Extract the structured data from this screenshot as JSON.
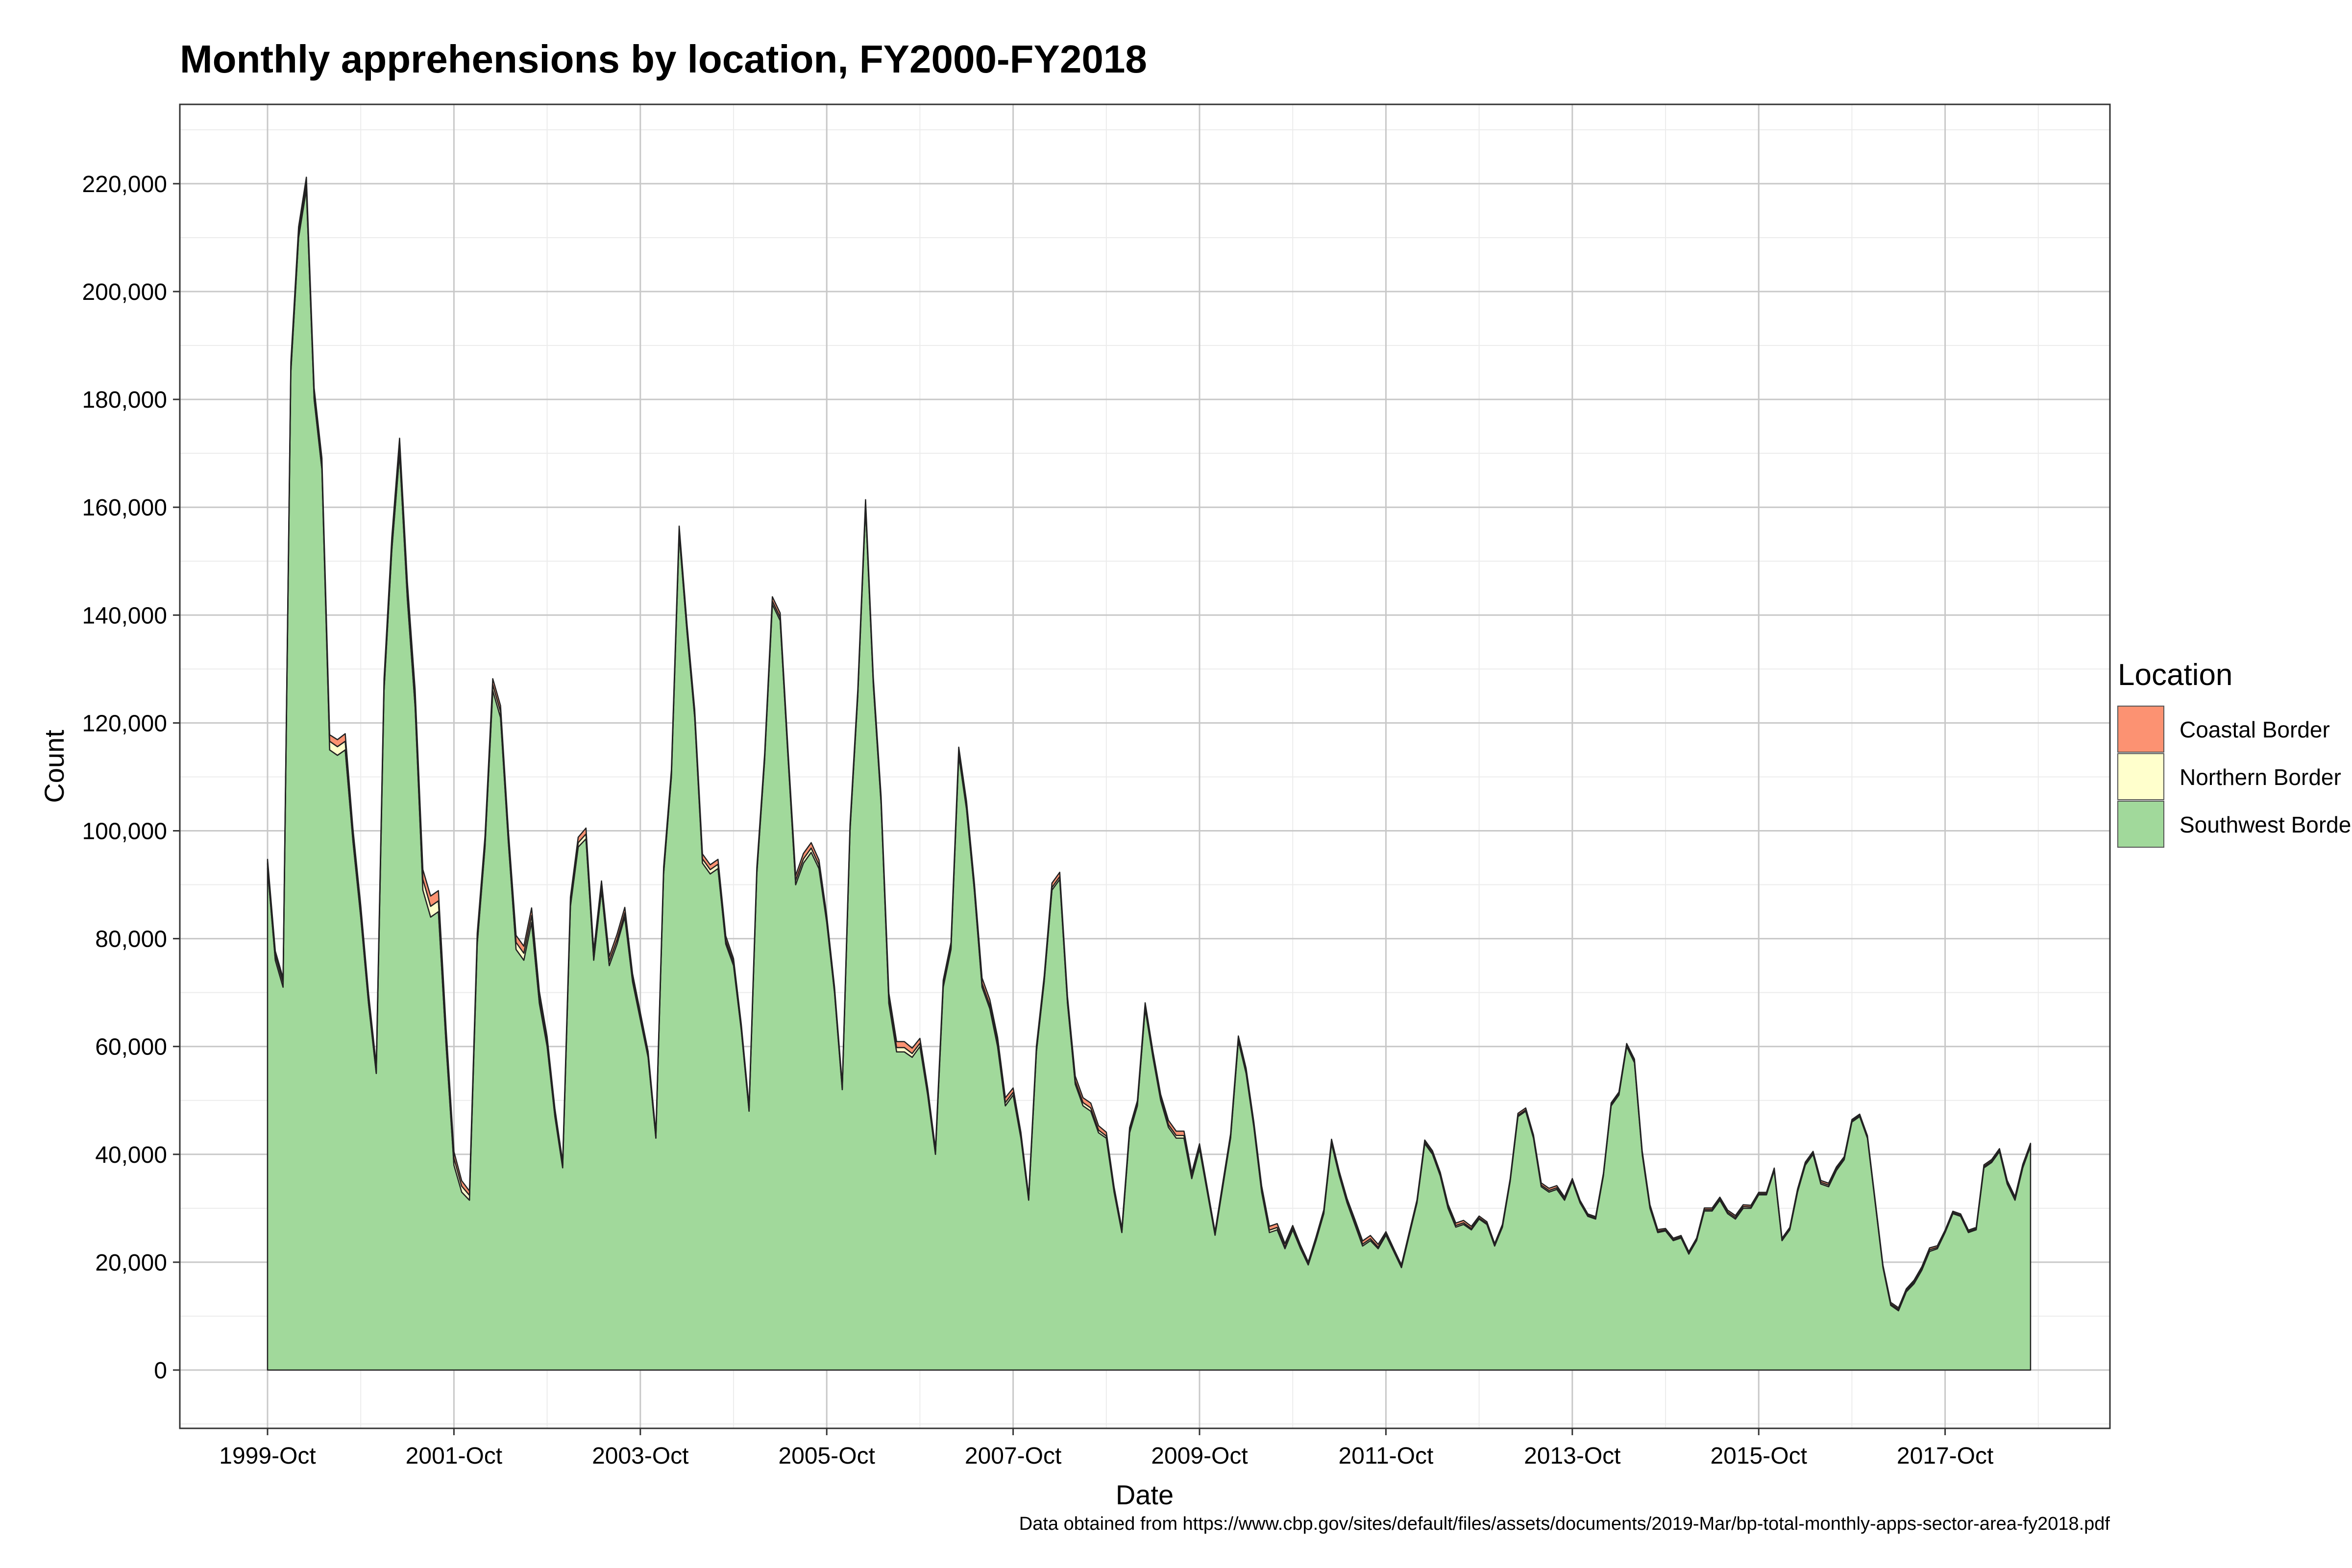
{
  "chart_data": {
    "type": "area",
    "stacked": true,
    "title": "Monthly apprehensions by location, FY2000-FY2018",
    "xlabel": "Date",
    "ylabel": "Count",
    "caption": "Data obtained from https://www.cbp.gov/sites/default/files/assets/documents/2019-Mar/bp-total-monthly-apps-sector-area-fy2018.pdf",
    "legend_title": "Location",
    "legend_position": "right",
    "grid": true,
    "x_start": "1999-Oct",
    "x_tick_labels": [
      "1999-Oct",
      "2001-Oct",
      "2003-Oct",
      "2005-Oct",
      "2007-Oct",
      "2009-Oct",
      "2011-Oct",
      "2013-Oct",
      "2015-Oct",
      "2017-Oct"
    ],
    "y_tick_labels": [
      "0",
      "20,000",
      "40,000",
      "60,000",
      "80,000",
      "100,000",
      "120,000",
      "140,000",
      "160,000",
      "180,000",
      "200,000",
      "220,000"
    ],
    "ylim": [
      -10000,
      235000
    ],
    "colors": {
      "Coastal Border": "#fc9272",
      "Northern Border": "#ffffcc",
      "Southwest Border": "#a1d99b"
    },
    "series": [
      {
        "name": "Southwest Border",
        "values": [
          93000,
          76000,
          71000,
          185000,
          210000,
          219000,
          180000,
          167000,
          115000,
          114000,
          115000,
          98000,
          84000,
          68000,
          55000,
          126000,
          152000,
          170000,
          143000,
          123000,
          89000,
          84000,
          85000,
          60000,
          38000,
          33000,
          31500,
          79000,
          97000,
          126000,
          121000,
          98000,
          78000,
          76000,
          83000,
          68000,
          60000,
          47000,
          37500,
          86000,
          97000,
          98500,
          76000,
          89000,
          75000,
          79000,
          84000,
          72000,
          65000,
          58000,
          43000,
          92000,
          110000,
          155000,
          137000,
          121000,
          94000,
          92000,
          93000,
          79000,
          75000,
          63000,
          48000,
          92000,
          113000,
          142000,
          139000,
          114000,
          90000,
          94000,
          96000,
          93000,
          83000,
          70000,
          52000,
          100000,
          125000,
          160000,
          127000,
          105000,
          68000,
          59000,
          59000,
          58000,
          60000,
          51000,
          40000,
          71000,
          78000,
          114000,
          104000,
          89000,
          71000,
          67000,
          60000,
          49000,
          51000,
          43000,
          31500,
          59000,
          72000,
          89000,
          91000,
          68000,
          53000,
          49000,
          48000,
          44000,
          43000,
          33000,
          25500,
          44000,
          49000,
          67000,
          58000,
          50000,
          45000,
          43000,
          43000,
          35500,
          41000,
          33000,
          25000,
          34000,
          43000,
          61000,
          55000,
          45000,
          33000,
          25500,
          26000,
          22500,
          26000,
          22500,
          19500,
          24000,
          29000,
          42000,
          36000,
          31000,
          27000,
          23000,
          24000,
          22500,
          25000,
          22000,
          19000,
          25000,
          31000,
          42000,
          40000,
          36000,
          30000,
          26500,
          27000,
          26000,
          28000,
          27000,
          23000,
          26500,
          35000,
          47000,
          48000,
          43000,
          34000,
          33000,
          33500,
          31500,
          35000,
          31000,
          28500,
          28000,
          36000,
          49000,
          51000,
          60000,
          57000,
          40000,
          30000,
          25500,
          25800,
          24000,
          24500,
          21500,
          24000,
          29500,
          29500,
          31500,
          29000,
          28000,
          30000,
          30000,
          32500,
          32500,
          37000,
          24000,
          26000,
          33000,
          38000,
          40000,
          34500,
          34000,
          37000,
          39000,
          46000,
          47000,
          43000,
          31000,
          19000,
          12000,
          11000,
          14500,
          16000,
          18500,
          22000,
          22500,
          25500,
          29000,
          28500,
          25500,
          26000,
          37500,
          38500,
          40500,
          34500,
          31500,
          37500,
          41500
        ]
      },
      {
        "name": "Northern Border",
        "values": [
          900,
          900,
          900,
          1000,
          1000,
          1100,
          1100,
          1100,
          1600,
          1600,
          1600,
          1200,
          1200,
          1000,
          800,
          1200,
          1300,
          1500,
          1700,
          1700,
          2000,
          2000,
          2000,
          1600,
          1300,
          1100,
          900,
          1000,
          1000,
          1100,
          1100,
          1100,
          1300,
          1300,
          1300,
          1100,
          900,
          700,
          500,
          800,
          800,
          900,
          800,
          800,
          800,
          800,
          800,
          700,
          600,
          500,
          400,
          600,
          600,
          700,
          700,
          700,
          800,
          800,
          800,
          700,
          600,
          500,
          400,
          500,
          500,
          600,
          600,
          600,
          800,
          800,
          800,
          700,
          600,
          500,
          400,
          500,
          500,
          600,
          600,
          600,
          800,
          800,
          800,
          700,
          600,
          500,
          400,
          500,
          500,
          600,
          600,
          600,
          700,
          700,
          700,
          600,
          500,
          400,
          300,
          400,
          400,
          500,
          500,
          500,
          600,
          600,
          600,
          500,
          400,
          350,
          300,
          350,
          350,
          400,
          400,
          400,
          500,
          500,
          500,
          400,
          350,
          300,
          250,
          300,
          300,
          350,
          350,
          350,
          450,
          450,
          450,
          350,
          300,
          250,
          200,
          250,
          250,
          300,
          300,
          300,
          350,
          350,
          350,
          300,
          250,
          200,
          200,
          200,
          200,
          250,
          250,
          250,
          300,
          300,
          300,
          250,
          200,
          200,
          200,
          200,
          200,
          250,
          250,
          250,
          300,
          300,
          300,
          250,
          200,
          200,
          200,
          200,
          200,
          250,
          250,
          250,
          300,
          300,
          300,
          250,
          200,
          200,
          200,
          200,
          200,
          250,
          250,
          250,
          300,
          300,
          300,
          250,
          200,
          200,
          200,
          200,
          200,
          250,
          250,
          250,
          300,
          300,
          300,
          250,
          200,
          200,
          200,
          200,
          200,
          250,
          250,
          250,
          300,
          300,
          300,
          250,
          200,
          200,
          200,
          200,
          200,
          250,
          250,
          250,
          300,
          300,
          300,
          250
        ]
      },
      {
        "name": "Coastal Border",
        "values": [
          800,
          800,
          800,
          900,
          1000,
          1100,
          1000,
          1000,
          1200,
          1300,
          1400,
          1100,
          1000,
          900,
          700,
          1000,
          1100,
          1300,
          1500,
          1500,
          1800,
          1900,
          1900,
          1500,
          1200,
          1000,
          800,
          1000,
          1000,
          1100,
          1100,
          1100,
          1300,
          1300,
          1400,
          1100,
          900,
          800,
          600,
          900,
          1000,
          1100,
          900,
          900,
          900,
          1000,
          1000,
          800,
          700,
          600,
          500,
          700,
          700,
          800,
          800,
          800,
          900,
          900,
          900,
          800,
          700,
          600,
          500,
          700,
          700,
          800,
          800,
          800,
          900,
          1000,
          1000,
          900,
          700,
          600,
          500,
          700,
          700,
          800,
          800,
          800,
          1100,
          1100,
          1100,
          1000,
          900,
          800,
          600,
          800,
          800,
          900,
          900,
          900,
          1000,
          1000,
          1000,
          900,
          800,
          700,
          500,
          700,
          700,
          800,
          800,
          800,
          900,
          900,
          900,
          800,
          700,
          600,
          450,
          600,
          600,
          700,
          700,
          700,
          800,
          800,
          800,
          700,
          600,
          500,
          400,
          500,
          500,
          600,
          600,
          600,
          700,
          700,
          700,
          600,
          500,
          450,
          350,
          450,
          450,
          500,
          500,
          500,
          600,
          600,
          600,
          500,
          400,
          350,
          300,
          350,
          350,
          400,
          400,
          400,
          450,
          450,
          450,
          400,
          350,
          300,
          250,
          300,
          300,
          350,
          350,
          350,
          400,
          400,
          400,
          350,
          300,
          250,
          250,
          250,
          250,
          300,
          300,
          300,
          350,
          350,
          350,
          300,
          250,
          250,
          250,
          250,
          250,
          300,
          300,
          300,
          350,
          350,
          350,
          300,
          250,
          250,
          250,
          250,
          250,
          300,
          300,
          300,
          350,
          350,
          350,
          300,
          250,
          250,
          250,
          250,
          250,
          300,
          300,
          300,
          350,
          350,
          350,
          300,
          250,
          250,
          250,
          250,
          250,
          300,
          300,
          300,
          350,
          350,
          350,
          300
        ]
      }
    ]
  }
}
